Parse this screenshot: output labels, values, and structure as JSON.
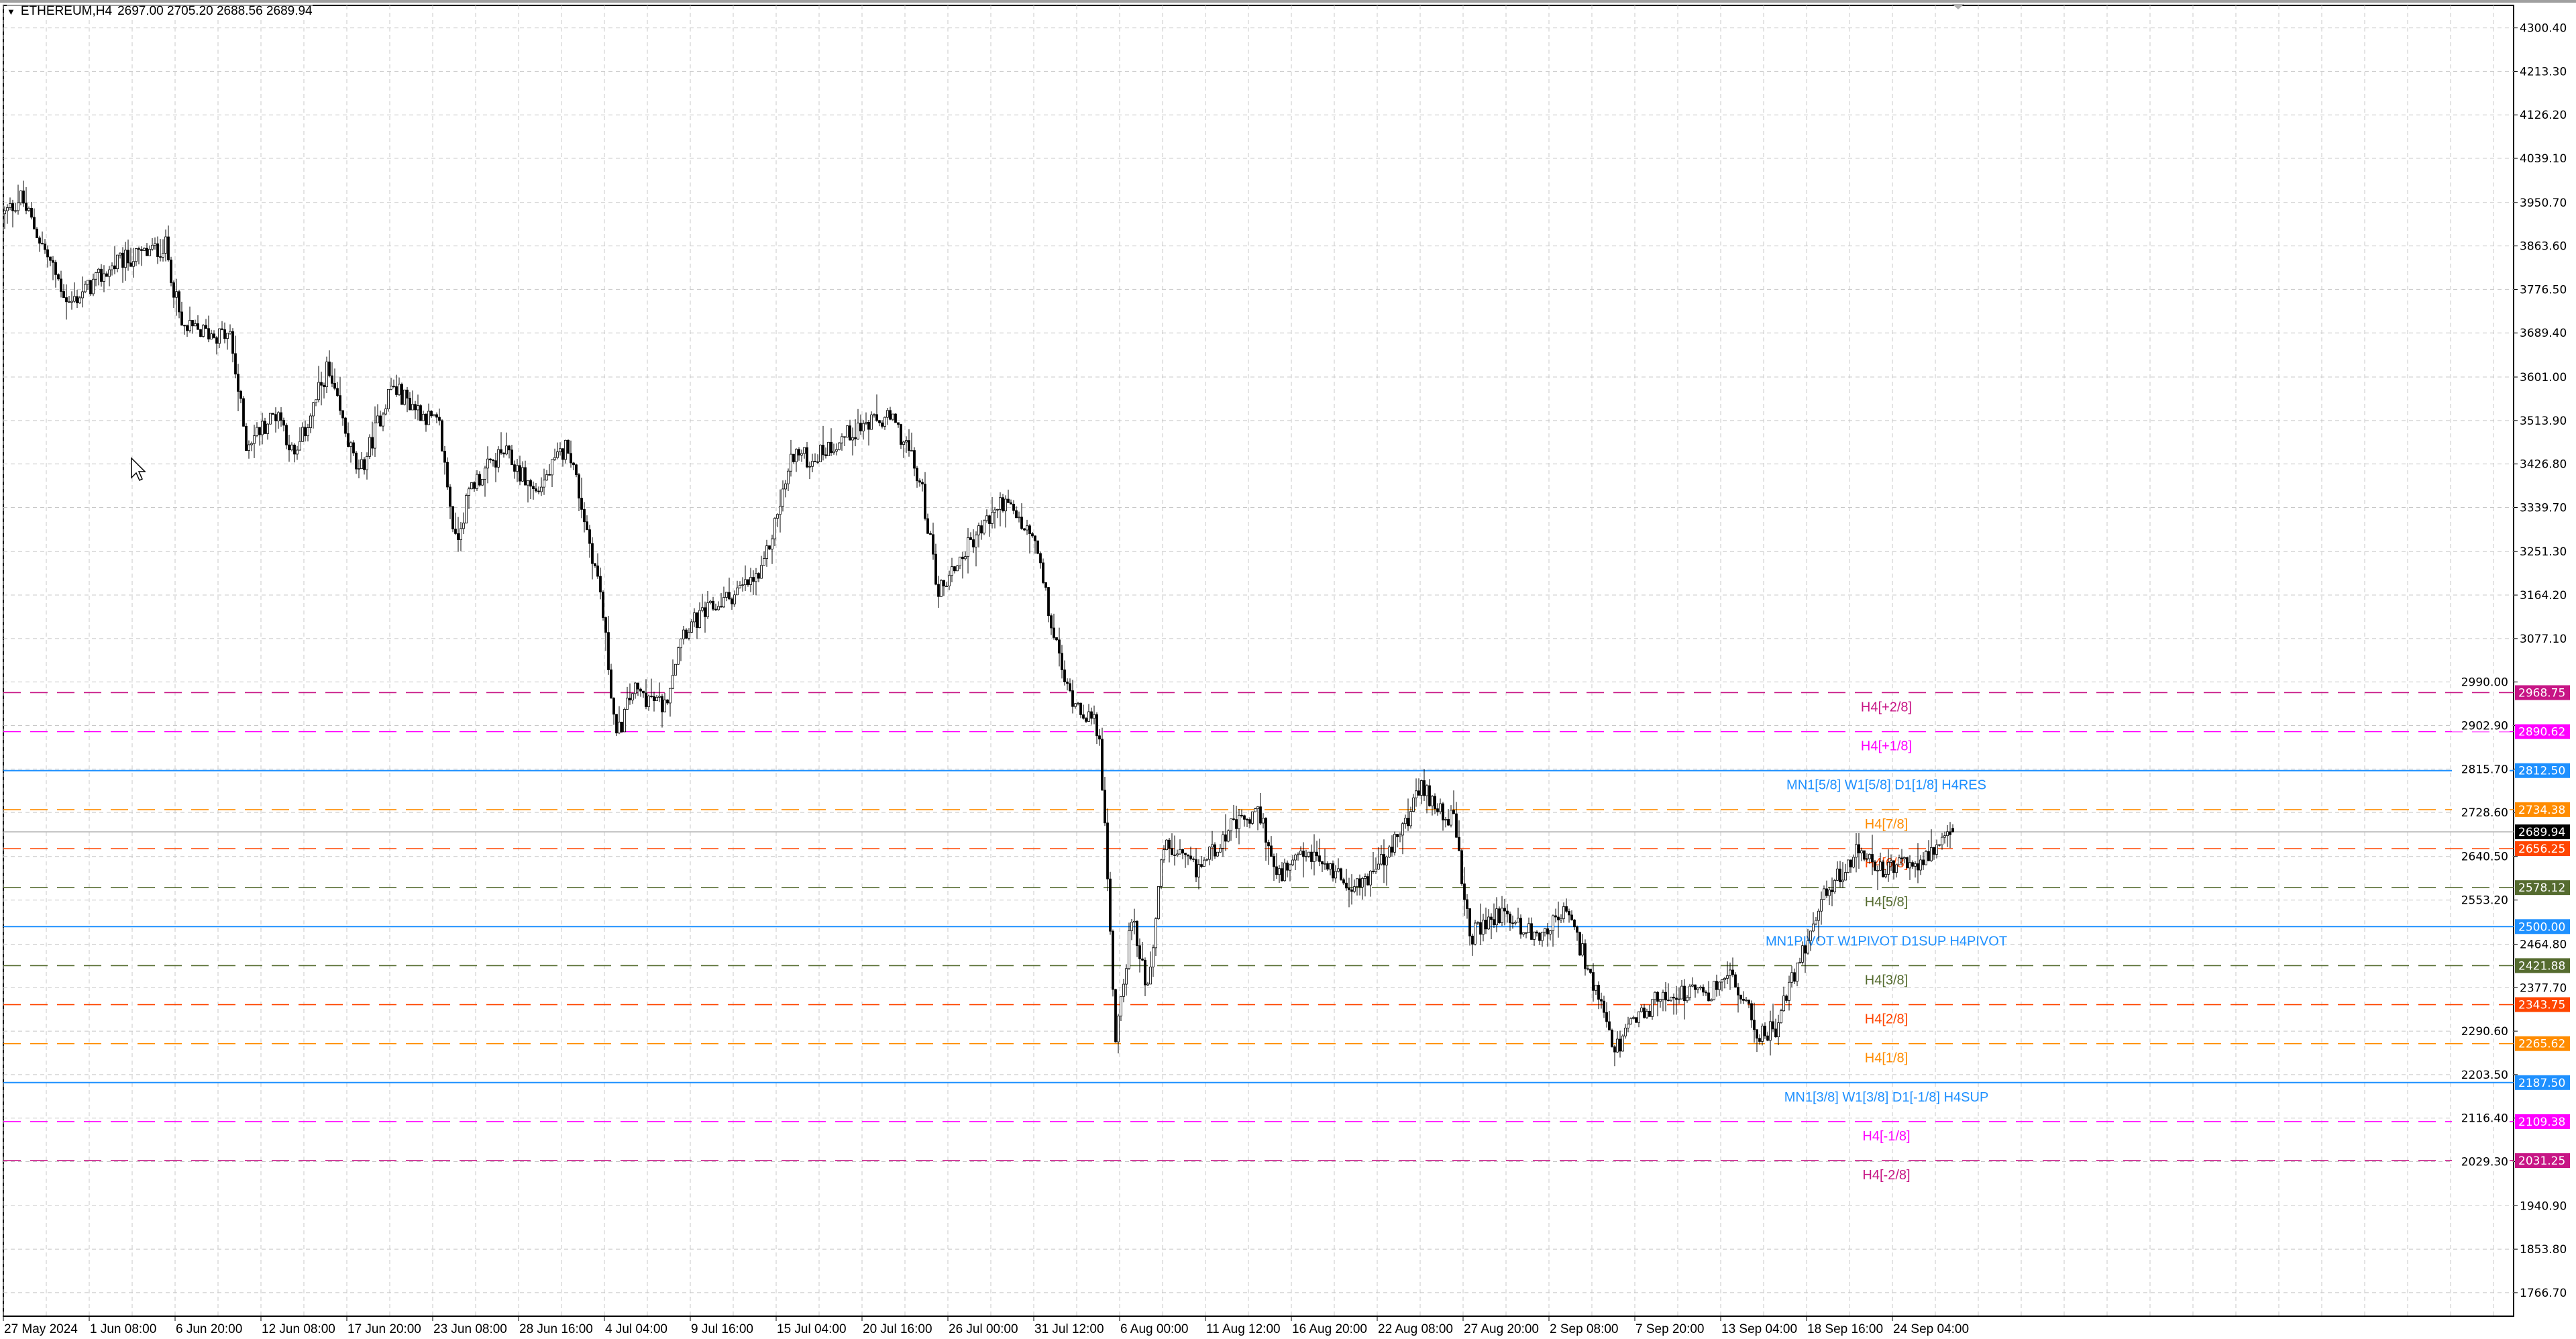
{
  "header": {
    "menu_icon": "triangle-down-icon",
    "symbol": "ETHEREUM,H4",
    "ohlc": "2697.00 2705.20 2688.56 2689.94"
  },
  "chart_data": {
    "type": "candlestick",
    "symbol": "ETHEREUM",
    "timeframe": "H4",
    "last": {
      "open": 2697.0,
      "high": 2705.2,
      "low": 2688.56,
      "close": 2689.94
    },
    "ylim": [
      1766.7,
      4300.4
    ],
    "grid": true,
    "price_ticks": [
      "4300.40",
      "4213.30",
      "4126.20",
      "4039.10",
      "3950.70",
      "3863.60",
      "3776.50",
      "3689.40",
      "3601.00",
      "3513.90",
      "3426.80",
      "3339.70",
      "3251.30",
      "3164.20",
      "3077.10",
      "2990.00",
      "2902.90",
      "2815.70",
      "2728.60",
      "2640.50",
      "2553.20",
      "2464.80",
      "2377.70",
      "2290.60",
      "2203.50",
      "2116.40",
      "2029.30",
      "1940.90",
      "1853.80",
      "1766.70"
    ],
    "time_ticks": [
      "27 May 2024",
      "1 Jun 08:00",
      "6 Jun 20:00",
      "12 Jun 08:00",
      "17 Jun 20:00",
      "23 Jun 08:00",
      "28 Jun 16:00",
      "4 Jul 04:00",
      "9 Jul 16:00",
      "15 Jul 04:00",
      "20 Jul 16:00",
      "26 Jul 00:00",
      "31 Jul 12:00",
      "6 Aug 00:00",
      "11 Aug 12:00",
      "16 Aug 20:00",
      "22 Aug 08:00",
      "27 Aug 20:00",
      "2 Sep 08:00",
      "7 Sep 20:00",
      "13 Sep 04:00",
      "18 Sep 16:00",
      "24 Sep 04:00"
    ],
    "close_path": [
      [
        "2024-05-27",
        3928
      ],
      [
        "2024-05-28",
        3961
      ],
      [
        "2024-05-31",
        3747
      ],
      [
        "2024-06-03",
        3830
      ],
      [
        "2024-06-06",
        3863
      ],
      [
        "2024-06-07",
        3698
      ],
      [
        "2024-06-10",
        3682
      ],
      [
        "2024-06-11",
        3468
      ],
      [
        "2024-06-13",
        3533
      ],
      [
        "2024-06-14",
        3435
      ],
      [
        "2024-06-16",
        3616
      ],
      [
        "2024-06-18",
        3402
      ],
      [
        "2024-06-20",
        3583
      ],
      [
        "2024-06-23",
        3500
      ],
      [
        "2024-06-24",
        3270
      ],
      [
        "2024-06-25",
        3385
      ],
      [
        "2024-06-27",
        3451
      ],
      [
        "2024-06-29",
        3369
      ],
      [
        "2024-07-01",
        3468
      ],
      [
        "2024-07-03",
        3171
      ],
      [
        "2024-07-04",
        2875
      ],
      [
        "2024-07-05",
        2974
      ],
      [
        "2024-07-07",
        2941
      ],
      [
        "2024-07-08",
        3089
      ],
      [
        "2024-07-10",
        3138
      ],
      [
        "2024-07-13",
        3204
      ],
      [
        "2024-07-15",
        3451
      ],
      [
        "2024-07-16",
        3435
      ],
      [
        "2024-07-19",
        3500
      ],
      [
        "2024-07-21",
        3517
      ],
      [
        "2024-07-22",
        3468
      ],
      [
        "2024-07-23",
        3369
      ],
      [
        "2024-07-24",
        3171
      ],
      [
        "2024-07-26",
        3270
      ],
      [
        "2024-07-28",
        3352
      ],
      [
        "2024-07-30",
        3270
      ],
      [
        "2024-07-31",
        3105
      ],
      [
        "2024-08-01",
        2974
      ],
      [
        "2024-08-03",
        2892
      ],
      [
        "2024-08-04",
        2282
      ],
      [
        "2024-08-05",
        2513
      ],
      [
        "2024-08-06",
        2381
      ],
      [
        "2024-08-07",
        2661
      ],
      [
        "2024-08-09",
        2612
      ],
      [
        "2024-08-11",
        2694
      ],
      [
        "2024-08-13",
        2727
      ],
      [
        "2024-08-14",
        2596
      ],
      [
        "2024-08-16",
        2645
      ],
      [
        "2024-08-19",
        2579
      ],
      [
        "2024-08-21",
        2645
      ],
      [
        "2024-08-23",
        2776
      ],
      [
        "2024-08-25",
        2711
      ],
      [
        "2024-08-26",
        2480
      ],
      [
        "2024-08-28",
        2530
      ],
      [
        "2024-08-30",
        2480
      ],
      [
        "2024-09-01",
        2530
      ],
      [
        "2024-09-02",
        2447
      ],
      [
        "2024-09-04",
        2250
      ],
      [
        "2024-09-05",
        2299
      ],
      [
        "2024-09-07",
        2365
      ],
      [
        "2024-09-10",
        2365
      ],
      [
        "2024-09-11",
        2414
      ],
      [
        "2024-09-13",
        2282
      ],
      [
        "2024-09-14",
        2299
      ],
      [
        "2024-09-16",
        2480
      ],
      [
        "2024-09-17",
        2562
      ],
      [
        "2024-09-19",
        2645
      ],
      [
        "2024-09-21",
        2612
      ],
      [
        "2024-09-24",
        2645
      ],
      [
        "2024-09-25",
        2689.94
      ]
    ],
    "current_price": {
      "value": 2689.94,
      "label": "2689.94",
      "color": "#000000"
    },
    "levels": [
      {
        "price": 2968.75,
        "tag": "2968.75",
        "label": "H4[+2/8]",
        "color": "#C71585",
        "style": "dashed"
      },
      {
        "price": 2890.62,
        "tag": "2890.62",
        "label": "H4[+1/8]",
        "color": "#FF00FF",
        "style": "dashed"
      },
      {
        "price": 2812.5,
        "tag": "2812.50",
        "label": "MN1[5/8] W1[5/8] D1[1/8] H4RES",
        "color": "#1E90FF",
        "style": "solid"
      },
      {
        "price": 2734.38,
        "tag": "2734.38",
        "label": "H4[7/8]",
        "color": "#FF8C00",
        "style": "dashed"
      },
      {
        "price": 2656.25,
        "tag": "2656.25",
        "label": "H4[6/8]",
        "color": "#FF4500",
        "style": "dashed"
      },
      {
        "price": 2578.12,
        "tag": "2578.12",
        "label": "H4[5/8]",
        "color": "#556B2F",
        "style": "dashed"
      },
      {
        "price": 2500.0,
        "tag": "2500.00",
        "label": "MN1PIVOT W1PIVOT D1SUP H4PIVOT",
        "color": "#1E90FF",
        "style": "solid"
      },
      {
        "price": 2421.88,
        "tag": "2421.88",
        "label": "H4[3/8]",
        "color": "#556B2F",
        "style": "dashed"
      },
      {
        "price": 2343.75,
        "tag": "2343.75",
        "label": "H4[2/8]",
        "color": "#FF4500",
        "style": "dashed"
      },
      {
        "price": 2265.62,
        "tag": "2265.62",
        "label": "H4[1/8]",
        "color": "#FF8C00",
        "style": "dashed"
      },
      {
        "price": 2187.5,
        "tag": "2187.50",
        "label": "MN1[3/8] W1[3/8] D1[-1/8] H4SUP",
        "color": "#1E90FF",
        "style": "solid"
      },
      {
        "price": 2109.38,
        "tag": "2109.38",
        "label": "H4[-1/8]",
        "color": "#FF00FF",
        "style": "dashed"
      },
      {
        "price": 2031.25,
        "tag": "2031.25",
        "label": "H4[-2/8]",
        "color": "#C71585",
        "style": "dashed"
      }
    ]
  }
}
